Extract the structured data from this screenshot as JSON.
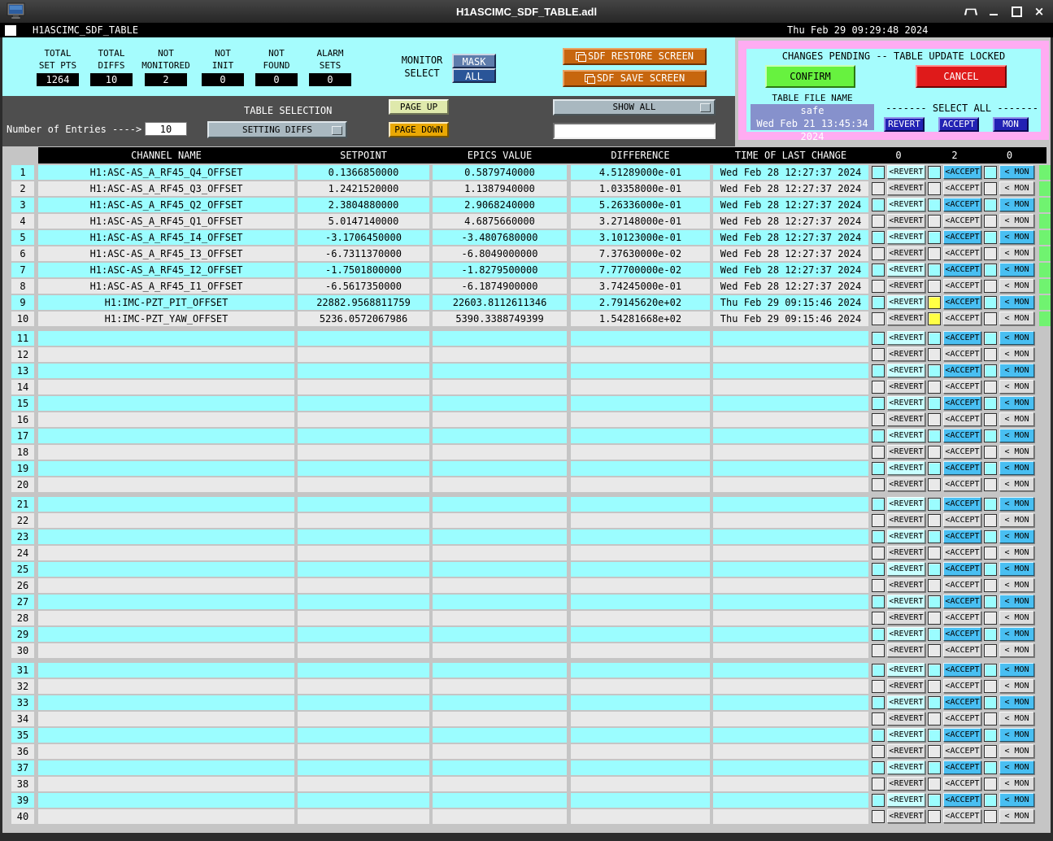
{
  "window": {
    "title": "H1ASCIMC_SDF_TABLE.adl",
    "app_title": "H1ASCIMC_SDF_TABLE",
    "datetime": "Thu Feb 29 09:29:48 2024",
    "controls": {
      "shade": "shade",
      "minimize": "minimize",
      "maximize": "maximize",
      "close": "close"
    }
  },
  "stats": [
    {
      "line1": "TOTAL",
      "line2": "SET PTS",
      "value": "1264"
    },
    {
      "line1": "TOTAL",
      "line2": "DIFFS",
      "value": "10"
    },
    {
      "line1": "NOT",
      "line2": "MONITORED",
      "value": "2"
    },
    {
      "line1": "NOT",
      "line2": "INIT",
      "value": "0"
    },
    {
      "line1": "NOT",
      "line2": "FOUND",
      "value": "0"
    },
    {
      "line1": "ALARM",
      "line2": "SETS",
      "value": "0"
    }
  ],
  "monitor_select": {
    "label1": "MONITOR",
    "label2": "SELECT",
    "mask": "MASK",
    "all": "ALL"
  },
  "screen_buttons": {
    "restore": "SDF RESTORE SCREEN",
    "save": "SDF SAVE SCREEN"
  },
  "selection_bar": {
    "table_selection_label": "TABLE SELECTION",
    "entries_label": "Number of Entries ---->",
    "entries_value": "10",
    "table_dropdown": "SETTING DIFFS",
    "page_up": "PAGE UP",
    "page_down": "PAGE DOWN",
    "show_dropdown": "SHOW ALL",
    "filter_value": ""
  },
  "pending_panel": {
    "title": "CHANGES PENDING -- TABLE UPDATE LOCKED",
    "confirm": "CONFIRM",
    "cancel": "CANCEL",
    "table_file_label": "TABLE FILE NAME",
    "file_name": "safe",
    "file_time": "Wed Feb 21 13:45:34 2024",
    "select_all_label": "------- SELECT ALL -------",
    "revert": "REVERT",
    "accept": "ACCEPT",
    "mon": "MON"
  },
  "table": {
    "headers": [
      "CHANNEL NAME",
      "SETPOINT",
      "EPICS VALUE",
      "DIFFERENCE",
      "TIME OF LAST CHANGE"
    ],
    "counts": [
      "0",
      "2",
      "0"
    ],
    "row_buttons": {
      "revert": "<REVERT",
      "accept": "<ACCEPT",
      "mon": "< MON"
    },
    "total_rows": 40,
    "rows": [
      {
        "channel": "H1:ASC-AS_A_RF45_Q4_OFFSET",
        "setpoint": "0.1366850000",
        "epics": "0.5879740000",
        "diff": "4.51289000e-01",
        "time": "Wed Feb 28 12:27:37 2024",
        "accept_flag": false,
        "monitored": true
      },
      {
        "channel": "H1:ASC-AS_A_RF45_Q3_OFFSET",
        "setpoint": "1.2421520000",
        "epics": "1.1387940000",
        "diff": "1.03358000e-01",
        "time": "Wed Feb 28 12:27:37 2024",
        "accept_flag": false,
        "monitored": true
      },
      {
        "channel": "H1:ASC-AS_A_RF45_Q2_OFFSET",
        "setpoint": "2.3804880000",
        "epics": "2.9068240000",
        "diff": "5.26336000e-01",
        "time": "Wed Feb 28 12:27:37 2024",
        "accept_flag": false,
        "monitored": true
      },
      {
        "channel": "H1:ASC-AS_A_RF45_Q1_OFFSET",
        "setpoint": "5.0147140000",
        "epics": "4.6875660000",
        "diff": "3.27148000e-01",
        "time": "Wed Feb 28 12:27:37 2024",
        "accept_flag": false,
        "monitored": true
      },
      {
        "channel": "H1:ASC-AS_A_RF45_I4_OFFSET",
        "setpoint": "-3.1706450000",
        "epics": "-3.4807680000",
        "diff": "3.10123000e-01",
        "time": "Wed Feb 28 12:27:37 2024",
        "accept_flag": false,
        "monitored": true
      },
      {
        "channel": "H1:ASC-AS_A_RF45_I3_OFFSET",
        "setpoint": "-6.7311370000",
        "epics": "-6.8049000000",
        "diff": "7.37630000e-02",
        "time": "Wed Feb 28 12:27:37 2024",
        "accept_flag": false,
        "monitored": true
      },
      {
        "channel": "H1:ASC-AS_A_RF45_I2_OFFSET",
        "setpoint": "-1.7501800000",
        "epics": "-1.8279500000",
        "diff": "7.77700000e-02",
        "time": "Wed Feb 28 12:27:37 2024",
        "accept_flag": false,
        "monitored": true
      },
      {
        "channel": "H1:ASC-AS_A_RF45_I1_OFFSET",
        "setpoint": "-6.5617350000",
        "epics": "-6.1874900000",
        "diff": "3.74245000e-01",
        "time": "Wed Feb 28 12:27:37 2024",
        "accept_flag": false,
        "monitored": true
      },
      {
        "channel": "H1:IMC-PZT_PIT_OFFSET",
        "setpoint": "22882.9568811759",
        "epics": "22603.8112611346",
        "diff": "2.79145620e+02",
        "time": "Thu Feb 29 09:15:46 2024",
        "accept_flag": true,
        "monitored": true
      },
      {
        "channel": "H1:IMC-PZT_YAW_OFFSET",
        "setpoint": "5236.0572067986",
        "epics": "5390.3388749399",
        "diff": "1.54281668e+02",
        "time": "Thu Feb 29 09:15:46 2024",
        "accept_flag": true,
        "monitored": true
      }
    ]
  },
  "colors": {
    "cyan_background": "#a5fcfd",
    "row_cyan": "#9bfdff",
    "row_gray": "#e9e9e9",
    "pending_border_pink": "#ffacf2",
    "confirm_green": "#67f23f",
    "cancel_red": "#df1a1a",
    "navy_button": "#2222b4",
    "orange_button": "#c7660e",
    "monitor_indicator_green": "#70f370",
    "accept_pending_yellow": "#ffff45",
    "row_button_blue": "#49bff2",
    "page_down_amber": "#eaa804",
    "page_up_pale": "#dfe9ac",
    "file_box_slate": "#8691cc"
  }
}
